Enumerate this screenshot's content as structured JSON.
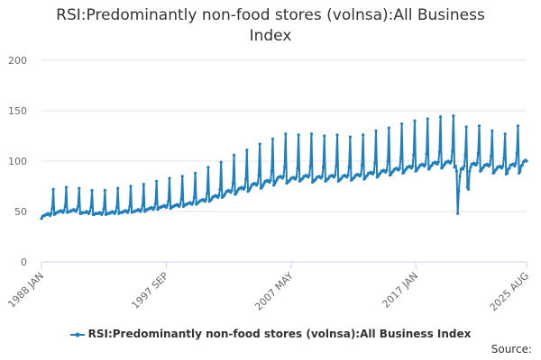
{
  "chart_data": {
    "type": "line",
    "title": "RSI:Predominantly non-food stores (volnsa):All Business Index",
    "xlabel": "",
    "ylabel": "",
    "ylim": [
      0,
      200
    ],
    "y_ticks": [
      "0",
      "50",
      "100",
      "150",
      "200"
    ],
    "x_ticks": [
      "1988 JAN",
      "1997 SEP",
      "2007 MAY",
      "2017 JAN",
      "2025 AUG"
    ],
    "x_range": [
      "1988 JAN",
      "2025 AUG"
    ],
    "series": [
      {
        "name": "RSI:Predominantly non-food stores (volnsa):All Business Index",
        "frequency": "monthly",
        "start": "1988 JAN",
        "color": "#1f7fbf",
        "values": [
          43,
          45,
          46,
          46,
          47,
          47,
          48,
          47,
          46,
          48,
          53,
          72,
          47,
          48,
          49,
          49,
          50,
          50,
          51,
          50,
          49,
          51,
          55,
          74,
          49,
          50,
          50,
          50,
          51,
          51,
          52,
          51,
          50,
          52,
          55,
          73,
          48,
          48,
          49,
          49,
          49,
          49,
          50,
          49,
          48,
          50,
          54,
          71,
          47,
          47,
          48,
          48,
          48,
          48,
          49,
          48,
          47,
          49,
          53,
          71,
          47,
          48,
          48,
          48,
          49,
          49,
          50,
          49,
          48,
          50,
          54,
          73,
          48,
          49,
          49,
          49,
          50,
          50,
          51,
          50,
          49,
          51,
          55,
          75,
          49,
          50,
          50,
          50,
          51,
          51,
          52,
          51,
          50,
          52,
          56,
          77,
          50,
          51,
          52,
          52,
          53,
          53,
          54,
          53,
          52,
          54,
          58,
          80,
          52,
          53,
          54,
          54,
          55,
          55,
          56,
          55,
          54,
          56,
          60,
          83,
          53,
          54,
          55,
          55,
          56,
          56,
          57,
          56,
          55,
          57,
          62,
          85,
          55,
          56,
          57,
          57,
          58,
          58,
          59,
          58,
          57,
          59,
          64,
          88,
          57,
          58,
          59,
          60,
          61,
          61,
          62,
          61,
          60,
          62,
          68,
          94,
          60,
          61,
          62,
          64,
          65,
          65,
          66,
          65,
          64,
          66,
          72,
          99,
          64,
          65,
          66,
          68,
          70,
          70,
          71,
          70,
          69,
          71,
          78,
          106,
          67,
          68,
          70,
          72,
          73,
          73,
          74,
          73,
          72,
          74,
          82,
          111,
          70,
          71,
          73,
          75,
          77,
          77,
          78,
          77,
          76,
          78,
          86,
          117,
          73,
          74,
          76,
          78,
          80,
          80,
          81,
          80,
          79,
          81,
          90,
          122,
          76,
          78,
          80,
          82,
          84,
          84,
          85,
          84,
          83,
          85,
          94,
          127,
          78,
          79,
          80,
          81,
          83,
          83,
          84,
          83,
          82,
          84,
          93,
          126,
          80,
          81,
          82,
          83,
          85,
          85,
          86,
          85,
          84,
          86,
          95,
          127,
          79,
          80,
          81,
          82,
          84,
          84,
          85,
          84,
          83,
          85,
          94,
          125,
          80,
          81,
          82,
          83,
          85,
          85,
          86,
          85,
          84,
          86,
          95,
          126,
          80,
          81,
          82,
          83,
          85,
          85,
          86,
          85,
          84,
          86,
          94,
          124,
          81,
          82,
          83,
          84,
          86,
          86,
          87,
          86,
          85,
          87,
          96,
          126,
          82,
          83,
          85,
          86,
          88,
          88,
          89,
          88,
          87,
          89,
          98,
          130,
          84,
          85,
          87,
          88,
          90,
          90,
          91,
          90,
          89,
          91,
          100,
          133,
          86,
          87,
          89,
          90,
          92,
          92,
          93,
          92,
          91,
          93,
          103,
          137,
          88,
          89,
          91,
          92,
          94,
          94,
          95,
          94,
          93,
          95,
          106,
          140,
          90,
          91,
          93,
          94,
          96,
          96,
          97,
          96,
          95,
          97,
          107,
          142,
          92,
          93,
          95,
          96,
          98,
          98,
          99,
          98,
          97,
          99,
          109,
          144,
          93,
          94,
          96,
          97,
          99,
          99,
          100,
          99,
          98,
          100,
          110,
          145,
          94,
          95,
          90,
          48,
          70,
          85,
          92,
          93,
          92,
          95,
          106,
          134,
          74,
          72,
          90,
          94,
          97,
          97,
          98,
          97,
          96,
          98,
          108,
          135,
          90,
          91,
          93,
          94,
          96,
          96,
          97,
          96,
          95,
          97,
          105,
          130,
          88,
          89,
          91,
          92,
          94,
          94,
          95,
          94,
          93,
          95,
          103,
          127,
          87,
          88,
          92,
          93,
          96,
          96,
          97,
          97,
          95,
          98,
          108,
          135,
          88,
          90,
          95,
          96,
          99,
          100,
          101,
          100
        ]
      }
    ]
  },
  "legend": {
    "label": "RSI:Predominantly non-food stores (volnsa):All Business Index"
  },
  "source": {
    "label": "Source:"
  }
}
